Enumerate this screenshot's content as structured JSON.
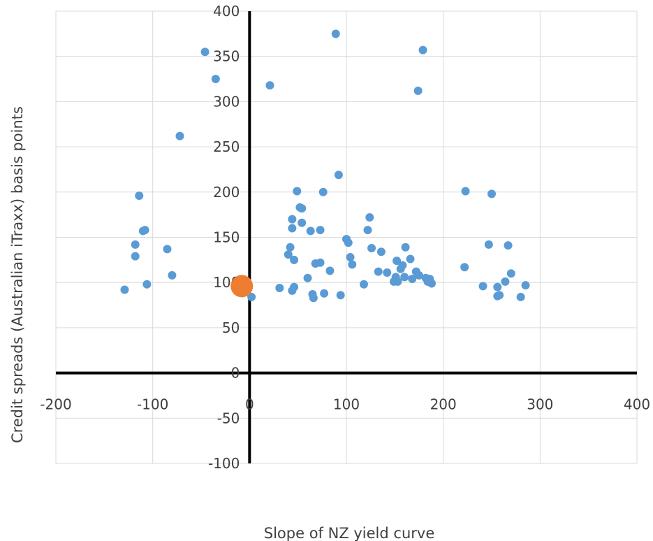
{
  "chart_data": {
    "type": "scatter",
    "title": "",
    "xlabel": "Slope of NZ yield curve",
    "ylabel": "Credit spreads (Australian iTraxx) basis points",
    "xlim": [
      -200,
      400
    ],
    "ylim": [
      -100,
      400
    ],
    "x_ticks": [
      -200,
      -100,
      0,
      100,
      200,
      300,
      400
    ],
    "y_ticks": [
      -100,
      -50,
      0,
      50,
      100,
      150,
      200,
      250,
      300,
      350,
      400
    ],
    "x_tick_labels": [
      "-200",
      "-100",
      "0",
      "100",
      "200",
      "300",
      "400"
    ],
    "y_tick_labels": [
      "-100",
      "-50",
      "0",
      "50",
      "100",
      "150",
      "200",
      "250",
      "300",
      "350",
      "400"
    ],
    "grid": true,
    "legend": "none",
    "colors": {
      "series": "#5b9bd5",
      "highlight": "#ed7d31",
      "axis": "#000000",
      "grid": "#d9d9d9"
    },
    "series": [
      {
        "points": [
          [
            -129,
            92
          ],
          [
            -114,
            196
          ],
          [
            -118,
            142
          ],
          [
            -118,
            129
          ],
          [
            -110,
            157
          ],
          [
            -108,
            158
          ],
          [
            -106,
            98
          ],
          [
            -85,
            137
          ],
          [
            -80,
            108
          ],
          [
            -72,
            262
          ],
          [
            -46,
            355
          ],
          [
            -35,
            325
          ],
          [
            2,
            84
          ],
          [
            21,
            318
          ],
          [
            31,
            94
          ],
          [
            40,
            131
          ],
          [
            42,
            139
          ],
          [
            44,
            170
          ],
          [
            44,
            160
          ],
          [
            44,
            91
          ],
          [
            46,
            95
          ],
          [
            46,
            125
          ],
          [
            49,
            201
          ],
          [
            52,
            183
          ],
          [
            54,
            182
          ],
          [
            54,
            166
          ],
          [
            60,
            105
          ],
          [
            63,
            157
          ],
          [
            65,
            87
          ],
          [
            66,
            83
          ],
          [
            68,
            121
          ],
          [
            73,
            158
          ],
          [
            73,
            122
          ],
          [
            76,
            200
          ],
          [
            77,
            88
          ],
          [
            83,
            113
          ],
          [
            89,
            375
          ],
          [
            92,
            219
          ],
          [
            94,
            86
          ],
          [
            100,
            148
          ],
          [
            102,
            144
          ],
          [
            104,
            128
          ],
          [
            106,
            120
          ],
          [
            118,
            98
          ],
          [
            122,
            158
          ],
          [
            124,
            172
          ],
          [
            126,
            138
          ],
          [
            133,
            112
          ],
          [
            136,
            134
          ],
          [
            142,
            111
          ],
          [
            149,
            101
          ],
          [
            151,
            106
          ],
          [
            152,
            124
          ],
          [
            153,
            101
          ],
          [
            156,
            115
          ],
          [
            158,
            119
          ],
          [
            160,
            106
          ],
          [
            161,
            139
          ],
          [
            166,
            126
          ],
          [
            168,
            104
          ],
          [
            172,
            112
          ],
          [
            174,
            312
          ],
          [
            175,
            108
          ],
          [
            179,
            357
          ],
          [
            182,
            105
          ],
          [
            184,
            101
          ],
          [
            186,
            104
          ],
          [
            188,
            99
          ],
          [
            222,
            117
          ],
          [
            223,
            201
          ],
          [
            241,
            96
          ],
          [
            247,
            142
          ],
          [
            250,
            198
          ],
          [
            256,
            85
          ],
          [
            256,
            95
          ],
          [
            258,
            86
          ],
          [
            264,
            101
          ],
          [
            267,
            141
          ],
          [
            270,
            110
          ],
          [
            280,
            84
          ],
          [
            285,
            97
          ]
        ]
      },
      {
        "points": [
          [
            -8,
            96
          ]
        ]
      }
    ]
  }
}
